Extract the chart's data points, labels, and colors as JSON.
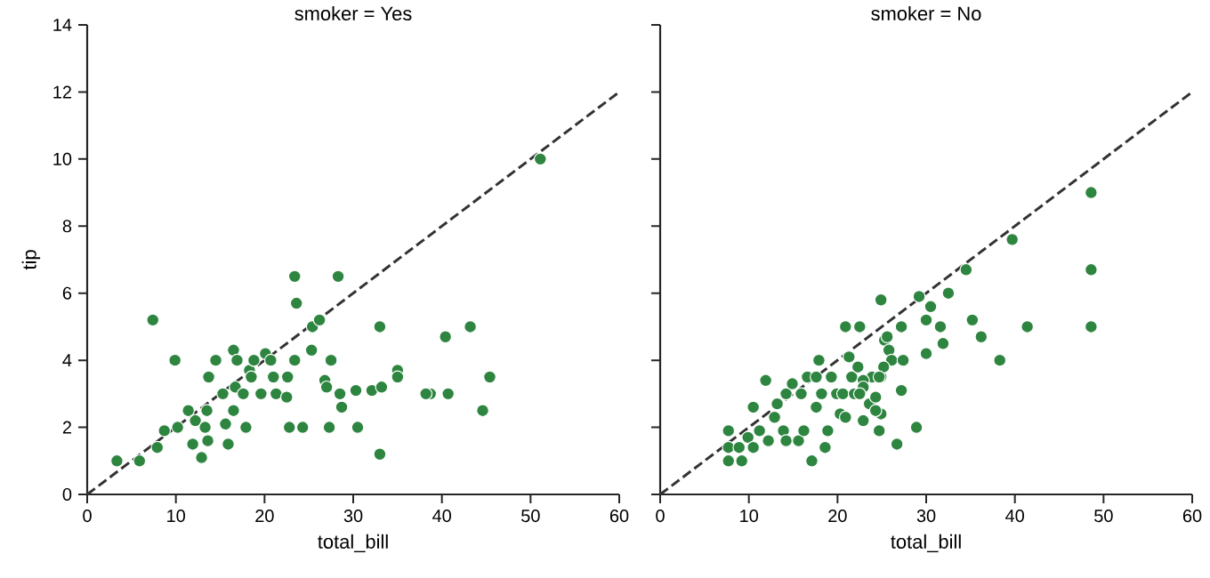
{
  "chart_data": [
    {
      "type": "scatter",
      "title": "smoker = Yes",
      "xlabel": "total_bill",
      "ylabel": "tip",
      "xlim": [
        0,
        60
      ],
      "ylim": [
        0,
        14
      ],
      "xticks": [
        0,
        10,
        20,
        30,
        40,
        50,
        60
      ],
      "yticks": [
        0,
        2,
        4,
        6,
        8,
        10,
        12,
        14
      ],
      "series": [
        {
          "color": "#2e8540",
          "marker": "circle",
          "x": [
            3.35,
            5.9,
            7.4,
            7.9,
            8.7,
            9.9,
            10.2,
            11.4,
            12.2,
            11.9,
            12.9,
            13.5,
            13.6,
            13.3,
            13.7,
            14.5,
            15.3,
            15.6,
            15.9,
            16.5,
            16.5,
            16.9,
            16.7,
            17.6,
            17.9,
            18.3,
            18.5,
            18.8,
            19.6,
            20.1,
            20.7,
            21.0,
            21.3,
            22.6,
            22.5,
            22.8,
            23.4,
            23.4,
            23.6,
            24.3,
            25.3,
            25.4,
            26.2,
            26.8,
            27.0,
            27.5,
            28.3,
            28.5,
            28.7,
            27.3,
            30.3,
            30.5,
            51.1,
            33.0,
            40.4,
            43.2,
            35.0,
            35.0,
            32.1,
            33.2,
            38.7,
            38.2,
            40.7,
            45.4,
            44.6,
            33.0
          ],
          "values": [
            1.0,
            1.0,
            5.2,
            1.4,
            1.9,
            4.0,
            2.0,
            2.5,
            2.2,
            1.5,
            1.1,
            2.5,
            1.6,
            2.0,
            3.5,
            4.0,
            3.0,
            2.1,
            1.5,
            4.3,
            2.5,
            4.0,
            3.2,
            3.0,
            2.0,
            3.7,
            3.5,
            4.0,
            3.0,
            4.2,
            4.0,
            3.5,
            3.0,
            3.5,
            2.9,
            2.0,
            4.0,
            6.5,
            5.7,
            2.0,
            4.3,
            5.0,
            5.2,
            3.4,
            3.2,
            4.0,
            6.5,
            3.0,
            2.6,
            2.0,
            3.1,
            2.0,
            10.0,
            5.0,
            4.7,
            5.0,
            3.7,
            3.5,
            3.1,
            3.2,
            3.0,
            3.0,
            3.0,
            3.5,
            2.5,
            1.2
          ]
        },
        {
          "type": "line",
          "x": [
            0,
            60
          ],
          "values": [
            0,
            12
          ],
          "color": "#333333",
          "line_style": "dashed",
          "marker": "none"
        }
      ]
    },
    {
      "type": "scatter",
      "title": "smoker = No",
      "xlabel": "total_bill",
      "xlim": [
        0,
        60
      ],
      "ylim": [
        0,
        14
      ],
      "xticks": [
        0,
        10,
        20,
        30,
        40,
        50,
        60
      ],
      "yticks": [
        0,
        2,
        4,
        6,
        8,
        10,
        12,
        14
      ],
      "tick_labels": "x",
      "series": [
        {
          "color": "#2e8540",
          "marker": "circle",
          "x": [
            7.7,
            7.7,
            7.7,
            8.9,
            9.2,
            9.9,
            10.5,
            10.5,
            11.2,
            11.9,
            12.2,
            12.9,
            13.2,
            13.9,
            14.2,
            14.2,
            14.9,
            15.6,
            15.9,
            16.2,
            16.6,
            17.1,
            17.6,
            17.6,
            17.9,
            18.2,
            18.6,
            18.9,
            19.3,
            19.9,
            20.3,
            20.6,
            20.9,
            21.3,
            21.6,
            21.9,
            22.3,
            22.9,
            23.6,
            23.9,
            20.9,
            22.6,
            24.9,
            25.3,
            24.9,
            48.6,
            39.7,
            34.5,
            48.6,
            48.6,
            41.4,
            38.3,
            24.9,
            29.2,
            32.5,
            30.5,
            22.5,
            27.2,
            30.0,
            31.6,
            35.2,
            36.2,
            31.9,
            25.6,
            25.8,
            26.1,
            27.4,
            30.0,
            25.2,
            24.7,
            22.9,
            22.9,
            24.3,
            24.3,
            27.2,
            24.7,
            26.7,
            28.9,
            22.5
          ],
          "values": [
            1.0,
            1.4,
            1.9,
            1.4,
            1.0,
            1.7,
            2.6,
            1.4,
            1.9,
            3.4,
            1.6,
            2.3,
            2.7,
            1.9,
            1.6,
            3.0,
            3.3,
            1.6,
            3.0,
            1.9,
            3.5,
            1.0,
            2.6,
            3.5,
            4.0,
            3.0,
            1.4,
            1.9,
            3.5,
            3.0,
            2.4,
            3.0,
            2.3,
            4.1,
            3.5,
            3.0,
            3.8,
            2.2,
            2.7,
            3.5,
            5.0,
            5.0,
            3.5,
            4.6,
            2.4,
            9.0,
            7.6,
            6.7,
            6.7,
            5.0,
            5.0,
            4.0,
            5.8,
            5.9,
            6.0,
            5.6,
            5.0,
            5.0,
            5.2,
            5.0,
            5.2,
            4.7,
            4.5,
            4.7,
            4.3,
            4.0,
            4.0,
            4.2,
            3.8,
            3.5,
            3.4,
            3.2,
            2.9,
            2.5,
            3.1,
            1.9,
            1.5,
            2.0,
            3.0
          ]
        },
        {
          "type": "line",
          "x": [
            0,
            60
          ],
          "values": [
            0,
            12
          ],
          "color": "#333333",
          "line_style": "dashed",
          "marker": "none"
        }
      ]
    }
  ]
}
